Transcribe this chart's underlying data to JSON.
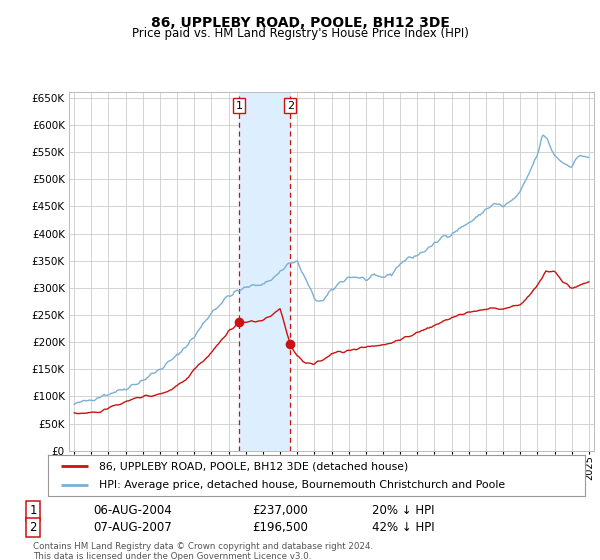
{
  "title": "86, UPPLEBY ROAD, POOLE, BH12 3DE",
  "subtitle": "Price paid vs. HM Land Registry's House Price Index (HPI)",
  "legend_line1": "86, UPPLEBY ROAD, POOLE, BH12 3DE (detached house)",
  "legend_line2": "HPI: Average price, detached house, Bournemouth Christchurch and Poole",
  "transaction1_date": "06-AUG-2004",
  "transaction1_price": "£237,000",
  "transaction1_hpi": "20% ↓ HPI",
  "transaction2_date": "07-AUG-2007",
  "transaction2_price": "£196,500",
  "transaction2_hpi": "42% ↓ HPI",
  "footer": "Contains HM Land Registry data © Crown copyright and database right 2024.\nThis data is licensed under the Open Government Licence v3.0.",
  "hpi_color": "#7bafd4",
  "price_color": "#cc1111",
  "vline_color": "#cc1111",
  "highlight_color": "#ddeeff",
  "ylim_min": 0,
  "ylim_max": 660000,
  "yticks": [
    0,
    50000,
    100000,
    150000,
    200000,
    250000,
    300000,
    350000,
    400000,
    450000,
    500000,
    550000,
    600000,
    650000
  ],
  "transaction1_x": 2004.6,
  "transaction1_y": 237000,
  "transaction2_x": 2007.6,
  "transaction2_y": 196500,
  "xmin": 1994.7,
  "xmax": 2025.3
}
